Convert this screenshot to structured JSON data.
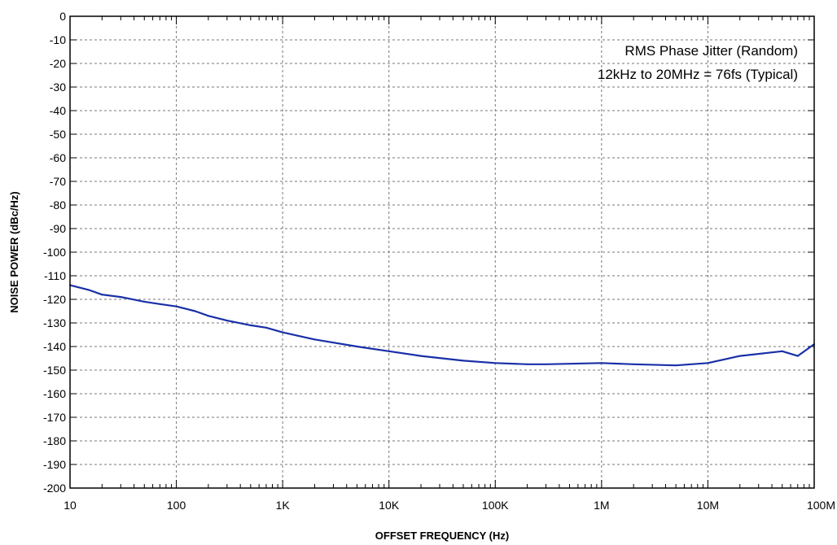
{
  "chart_data": {
    "type": "line",
    "title": "",
    "xlabel": "OFFSET FREQUENCY (Hz)",
    "ylabel": "NOISE POWER (dBc/Hz)",
    "x_scale": "log",
    "xlim": [
      10,
      100000000
    ],
    "ylim": [
      -200,
      0
    ],
    "grid": true,
    "x_ticks": [
      {
        "value": 10,
        "label": "10"
      },
      {
        "value": 100,
        "label": "100"
      },
      {
        "value": 1000,
        "label": "1K"
      },
      {
        "value": 10000,
        "label": "10K"
      },
      {
        "value": 100000,
        "label": "100K"
      },
      {
        "value": 1000000,
        "label": "1M"
      },
      {
        "value": 10000000,
        "label": "10M"
      },
      {
        "value": 100000000,
        "label": "100M"
      }
    ],
    "y_ticks": [
      0,
      -10,
      -20,
      -30,
      -40,
      -50,
      -60,
      -70,
      -80,
      -90,
      -100,
      -110,
      -120,
      -130,
      -140,
      -150,
      -160,
      -170,
      -180,
      -190,
      -200
    ],
    "annotations": [
      "RMS Phase Jitter (Random)",
      "12kHz to 20MHz = 76fs (Typical)"
    ],
    "series": [
      {
        "color": "#1a2fa8",
        "x": [
          10,
          15,
          20,
          30,
          50,
          70,
          100,
          150,
          200,
          300,
          500,
          700,
          1000,
          2000,
          5000,
          10000,
          20000,
          50000,
          100000,
          200000,
          300000,
          500000,
          1000000,
          2000000,
          5000000,
          10000000,
          20000000,
          50000000,
          70000000,
          100000000
        ],
        "y": [
          -114,
          -116,
          -118,
          -119,
          -121,
          -122,
          -123,
          -125,
          -127,
          -129,
          -131,
          -132,
          -134,
          -137,
          -140,
          -142,
          -144,
          -146,
          -147,
          -147.5,
          -147.5,
          -147.3,
          -147,
          -147.5,
          -148,
          -147,
          -144,
          -142,
          -144,
          -139
        ]
      }
    ]
  }
}
